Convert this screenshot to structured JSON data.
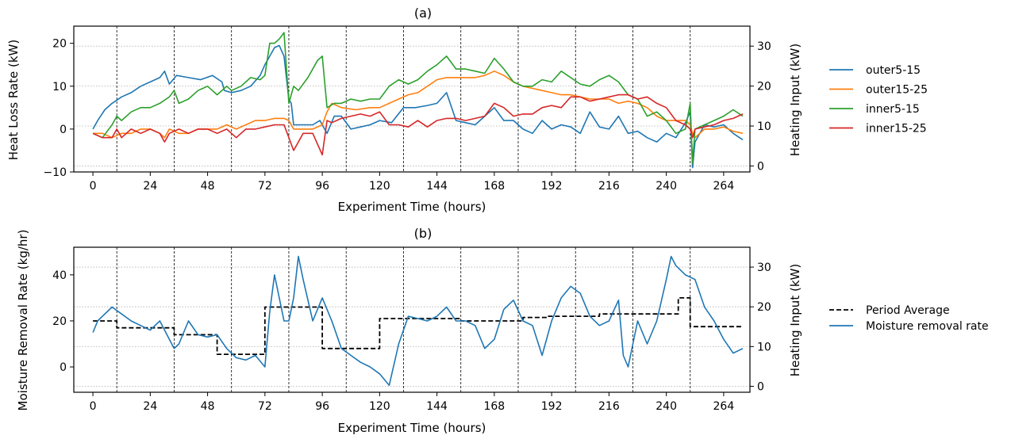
{
  "colors": {
    "c0": "#1f77b4",
    "c1": "#ff7f0e",
    "c2": "#2ca02c",
    "c3": "#d62728",
    "avg": "#000000",
    "grid": "#b0b0b0"
  },
  "chart_data": [
    {
      "type": "line",
      "title": "(a)",
      "xlabel": "Experiment Time (hours)",
      "ylabel": "Heat Loss Rate (kW)",
      "y2label": "Heating Input (kW)",
      "xlim": [
        -8,
        275
      ],
      "ylim": [
        -10,
        24
      ],
      "y2lim": [
        -1.5,
        35
      ],
      "xticks": [
        0,
        24,
        48,
        72,
        96,
        120,
        144,
        168,
        192,
        216,
        240,
        264
      ],
      "yticks": [
        -10,
        0,
        10,
        20
      ],
      "y2ticks": [
        0,
        10,
        20,
        30
      ],
      "grid": "horizontal dotted on right axis",
      "legend": "right, outside",
      "vlines": [
        10,
        34,
        58,
        82,
        106,
        130,
        154,
        178,
        202,
        226,
        250
      ],
      "series": [
        {
          "name": "outer5-15",
          "color": "c0",
          "x": [
            0,
            2,
            5,
            8,
            12,
            16,
            20,
            24,
            28,
            30,
            32,
            35,
            40,
            45,
            50,
            54,
            55,
            58,
            62,
            66,
            70,
            72,
            74,
            76,
            78,
            80,
            81,
            82,
            83,
            84,
            88,
            92,
            95,
            98,
            101,
            104,
            108,
            112,
            116,
            120,
            125,
            130,
            135,
            140,
            144,
            148,
            152,
            156,
            160,
            164,
            168,
            172,
            176,
            180,
            184,
            188,
            192,
            196,
            200,
            204,
            208,
            212,
            216,
            220,
            224,
            228,
            232,
            236,
            240,
            244,
            248,
            250,
            251,
            252,
            256,
            260,
            264,
            268,
            272
          ],
          "y": [
            0,
            2,
            4.5,
            6,
            7.5,
            8.5,
            10,
            11,
            12,
            13.5,
            10.5,
            12.5,
            12,
            11.5,
            12.5,
            11,
            9,
            8.5,
            9,
            10,
            12.5,
            15,
            17,
            19,
            19.5,
            17,
            12,
            7,
            6,
            1,
            1,
            1,
            2,
            -1,
            3,
            3,
            0,
            0.5,
            1,
            2,
            1.5,
            5,
            5,
            5.5,
            6,
            8.5,
            2,
            1.5,
            1,
            3,
            5,
            2,
            2,
            0,
            -1,
            2,
            0,
            1,
            0.5,
            -1,
            4,
            0.5,
            0,
            3,
            -1,
            -0.5,
            -2,
            -3,
            -1,
            -2,
            1.5,
            4,
            -9,
            -3,
            1,
            0.5,
            1,
            -1,
            -2.5
          ]
        },
        {
          "name": "outer15-25",
          "color": "c1",
          "x": [
            0,
            4,
            8,
            12,
            16,
            20,
            24,
            28,
            30,
            32,
            36,
            40,
            44,
            48,
            52,
            56,
            60,
            64,
            68,
            72,
            76,
            80,
            82,
            84,
            88,
            92,
            96,
            98,
            100,
            104,
            110,
            116,
            120,
            124,
            128,
            132,
            136,
            140,
            144,
            148,
            152,
            156,
            160,
            164,
            168,
            172,
            176,
            180,
            184,
            188,
            192,
            196,
            200,
            204,
            208,
            212,
            216,
            220,
            224,
            228,
            232,
            236,
            240,
            244,
            248,
            250,
            251,
            252,
            256,
            260,
            264,
            268,
            272
          ],
          "y": [
            -1,
            -1,
            -2,
            -1,
            -1,
            0,
            0,
            -1,
            -2,
            0,
            -1,
            -1,
            0,
            0,
            0,
            1,
            0,
            1,
            2,
            2,
            2.5,
            2.5,
            2,
            0,
            0,
            0,
            1,
            4,
            6,
            5,
            4.5,
            5,
            5,
            6,
            7,
            8,
            8.5,
            10,
            11.5,
            12,
            12,
            12,
            12,
            12.5,
            13.5,
            12.5,
            11,
            10,
            9.5,
            9,
            8.5,
            8,
            8,
            7.5,
            7,
            7,
            7,
            6,
            6.5,
            6,
            5,
            3,
            2,
            2,
            2,
            1,
            -1,
            -2,
            0,
            0,
            0.5,
            -0.5,
            -1
          ]
        },
        {
          "name": "inner5-15",
          "color": "c2",
          "x": [
            0,
            4,
            8,
            10,
            12,
            16,
            20,
            24,
            28,
            32,
            34,
            36,
            40,
            44,
            48,
            52,
            56,
            58,
            62,
            66,
            70,
            72,
            74,
            76,
            78,
            80,
            82,
            84,
            86,
            90,
            94,
            96,
            98,
            101,
            104,
            108,
            112,
            116,
            120,
            124,
            128,
            132,
            136,
            140,
            144,
            148,
            152,
            156,
            160,
            164,
            168,
            172,
            176,
            180,
            184,
            188,
            192,
            196,
            200,
            204,
            208,
            212,
            216,
            220,
            224,
            228,
            232,
            236,
            240,
            244,
            248,
            250,
            251,
            252,
            256,
            260,
            264,
            268,
            272
          ],
          "y": [
            -1,
            -2,
            1,
            3,
            2,
            4,
            5,
            5,
            6,
            7.5,
            9,
            6,
            7,
            9,
            10,
            8,
            10,
            9,
            10,
            12,
            11.5,
            12.5,
            20,
            20,
            21,
            22.5,
            6,
            10,
            9,
            12,
            16,
            17,
            5,
            6,
            6,
            7,
            6.5,
            7,
            7,
            10,
            11.5,
            10.5,
            11.5,
            13.5,
            15,
            17,
            14,
            14,
            13.5,
            13,
            16.5,
            14,
            11,
            10,
            10,
            11.5,
            11,
            13.5,
            12,
            10.5,
            10,
            11.5,
            12.5,
            11,
            8,
            7,
            3,
            4,
            2,
            -1,
            0,
            6,
            -8,
            0,
            1,
            2,
            3,
            4.5,
            3
          ]
        },
        {
          "name": "inner15-25",
          "color": "c3",
          "x": [
            0,
            4,
            8,
            10,
            12,
            16,
            20,
            24,
            28,
            30,
            32,
            36,
            40,
            44,
            48,
            52,
            56,
            60,
            64,
            68,
            72,
            76,
            80,
            82,
            84,
            86,
            88,
            92,
            96,
            98,
            100,
            104,
            108,
            112,
            116,
            120,
            124,
            128,
            132,
            136,
            140,
            144,
            148,
            152,
            156,
            160,
            164,
            168,
            172,
            176,
            180,
            184,
            188,
            192,
            196,
            200,
            204,
            208,
            212,
            216,
            220,
            224,
            228,
            232,
            236,
            240,
            244,
            248,
            250,
            251,
            252,
            256,
            260,
            264,
            268,
            272
          ],
          "y": [
            -1,
            -2,
            -2,
            0,
            -2,
            0,
            -1,
            0,
            -1,
            -3,
            -1,
            0,
            -1,
            0,
            0,
            -1,
            0,
            -2,
            0,
            0,
            0.5,
            1,
            1,
            -2,
            -5,
            -3,
            -1,
            -1,
            -6,
            2,
            1.5,
            2.5,
            3,
            3.5,
            3,
            4,
            1,
            1,
            0.5,
            2,
            0.5,
            2,
            2.5,
            2.5,
            2,
            2.5,
            3,
            6,
            5,
            3,
            3.5,
            3.5,
            5,
            5.5,
            5,
            7.5,
            7.5,
            6.5,
            7,
            7.5,
            8,
            8,
            7,
            7.5,
            6,
            5,
            2,
            1,
            0,
            -2,
            0,
            0.5,
            1,
            2,
            2.5,
            3.5
          ]
        }
      ]
    },
    {
      "type": "line",
      "title": "(b)",
      "xlabel": "Experiment Time (hours)",
      "ylabel": "Moisture Removal Rate (kg/hr)",
      "y2label": "Heating Input (kW)",
      "xlim": [
        -8,
        275
      ],
      "ylim": [
        -11,
        52
      ],
      "y2lim": [
        -1.5,
        35
      ],
      "xticks": [
        0,
        24,
        48,
        72,
        96,
        120,
        144,
        168,
        192,
        216,
        240,
        264
      ],
      "yticks": [
        0,
        20,
        40
      ],
      "y2ticks": [
        0,
        10,
        20,
        30
      ],
      "grid": "horizontal dotted on right axis",
      "legend": "right, outside",
      "vlines": [
        10,
        34,
        58,
        82,
        106,
        130,
        154,
        178,
        202,
        226,
        250
      ],
      "series": [
        {
          "name": "Period Average",
          "color": "avg",
          "dashed": true,
          "x": [
            0,
            10,
            10,
            34,
            34,
            52,
            52,
            72,
            72,
            96,
            96,
            110,
            110,
            120,
            120,
            154,
            154,
            180,
            180,
            190,
            190,
            212,
            212,
            222,
            222,
            245,
            245,
            250,
            250,
            272
          ],
          "y": [
            20,
            20,
            17,
            17,
            14,
            14,
            5.5,
            5.5,
            26,
            26,
            8,
            8,
            8,
            8,
            21,
            21,
            20,
            20,
            21.5,
            21.5,
            22,
            22,
            23,
            23,
            23,
            23,
            30,
            30,
            17.5,
            17.5
          ]
        },
        {
          "name": "Moisture removal rate",
          "color": "c0",
          "x": [
            0,
            2,
            4,
            8,
            12,
            16,
            20,
            24,
            28,
            32,
            34,
            36,
            40,
            44,
            48,
            52,
            56,
            60,
            64,
            68,
            72,
            74,
            76,
            78,
            80,
            82,
            84,
            86,
            88,
            92,
            96,
            100,
            104,
            108,
            112,
            116,
            120,
            124,
            128,
            132,
            136,
            140,
            144,
            148,
            152,
            156,
            160,
            164,
            168,
            172,
            176,
            180,
            184,
            188,
            192,
            196,
            200,
            204,
            208,
            212,
            216,
            220,
            222,
            224,
            228,
            232,
            236,
            240,
            242,
            244,
            248,
            252,
            256,
            260,
            264,
            268,
            272
          ],
          "y": [
            15,
            20,
            22,
            26,
            23,
            20,
            18,
            16,
            20,
            12,
            8,
            10,
            20,
            14,
            13,
            14,
            8,
            4,
            3,
            5,
            0,
            24,
            40,
            30,
            20,
            20,
            30,
            48,
            38,
            20,
            30,
            20,
            8,
            5,
            2,
            0,
            -3,
            -8,
            10,
            22,
            21,
            20,
            22,
            26,
            20,
            20,
            18,
            8,
            12,
            25,
            29,
            20,
            18,
            5,
            20,
            30,
            35,
            32,
            22,
            18,
            20,
            29,
            5,
            0,
            20,
            10,
            20,
            38,
            48,
            44,
            40,
            38,
            26,
            20,
            12,
            6,
            8
          ]
        }
      ]
    }
  ],
  "legend_a": [
    "outer5-15",
    "outer15-25",
    "inner5-15",
    "inner15-25"
  ],
  "legend_b": [
    "Period Average",
    "Moisture removal rate"
  ]
}
